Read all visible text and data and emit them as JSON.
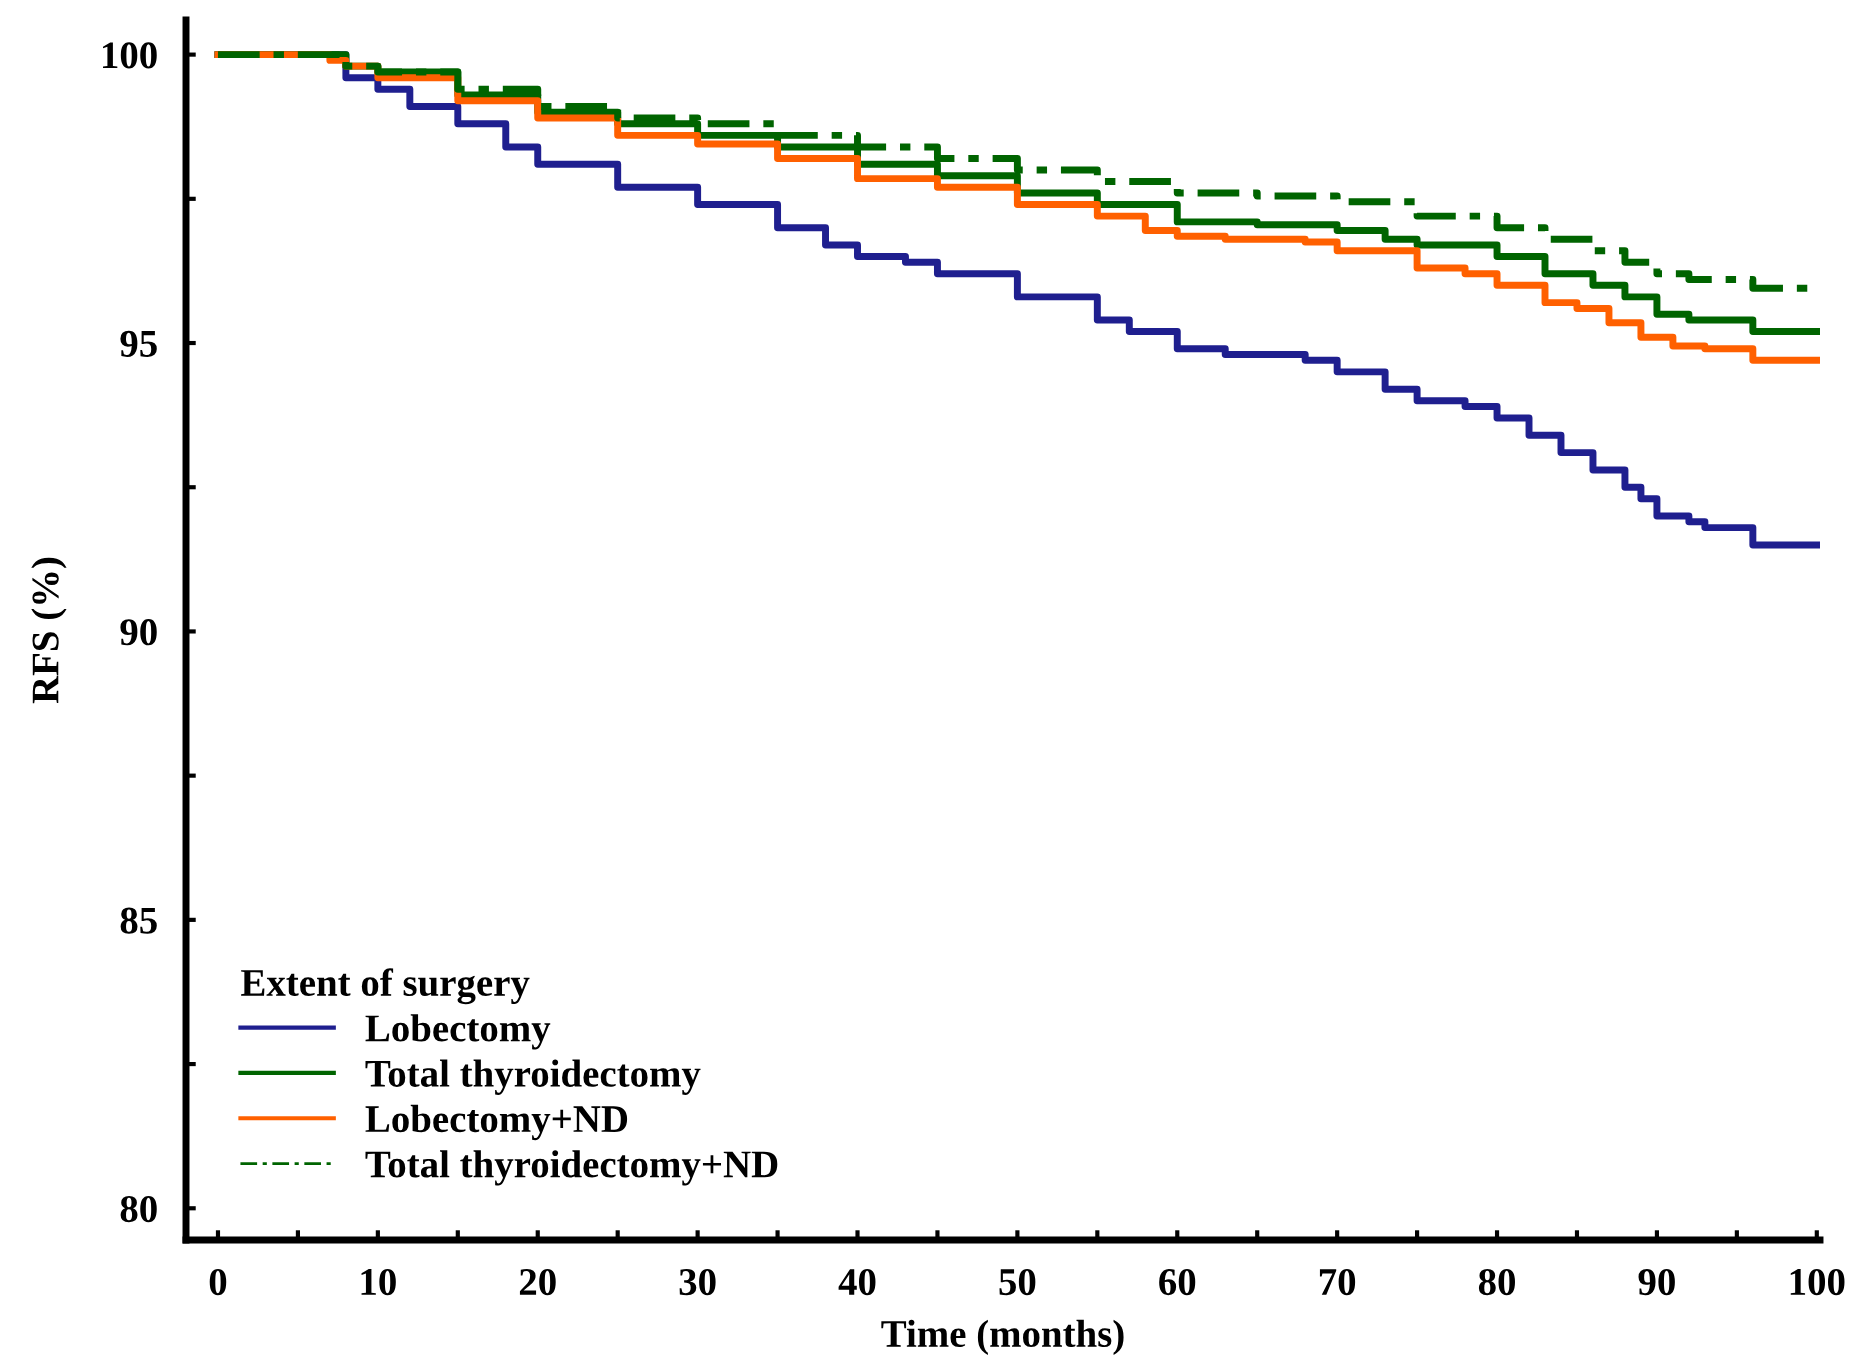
{
  "chart_data": {
    "type": "step",
    "xlabel": "Time (months)",
    "ylabel": "RFS (%)",
    "legend_title": "Extent of surgery",
    "legend": "bottom left",
    "grid": false,
    "xlim": [
      -2,
      100.2
    ],
    "ylim": [
      79.45,
      100.6
    ],
    "xticks": [
      0,
      {
        "value": 5,
        "label": null
      },
      10,
      {
        "value": 15,
        "label": null
      },
      20,
      {
        "value": 25,
        "label": null
      },
      30,
      {
        "value": 35,
        "label": null
      },
      40,
      {
        "value": 45,
        "label": null
      },
      50,
      {
        "value": 55,
        "label": null
      },
      60,
      {
        "value": 65,
        "label": null
      },
      70,
      {
        "value": 75,
        "label": null
      },
      80,
      {
        "value": 85,
        "label": null
      },
      90,
      {
        "value": 95,
        "label": null
      },
      100
    ],
    "yticks": [
      80,
      {
        "value": 82.5,
        "label": null
      },
      85,
      {
        "value": 87.5,
        "label": null
      },
      90,
      {
        "value": 92.5,
        "label": null
      },
      95,
      {
        "value": 97.5,
        "label": null
      },
      100
    ],
    "series": [
      {
        "name": "Lobectomy",
        "color": "#1f1f8f",
        "line_style": "solid",
        "x": [
          0,
          8,
          10,
          12,
          15,
          18,
          20,
          25,
          30,
          35,
          38,
          40,
          43,
          45,
          50,
          55,
          57,
          60,
          63,
          68,
          70,
          73,
          75,
          78,
          80,
          82,
          84,
          86,
          88,
          89,
          90,
          92,
          93,
          96,
          100
        ],
        "values": [
          100,
          99.6,
          99.4,
          99.1,
          98.8,
          98.4,
          98.1,
          97.7,
          97.4,
          97.0,
          96.7,
          96.5,
          96.4,
          96.2,
          95.8,
          95.4,
          95.2,
          94.9,
          94.8,
          94.7,
          94.5,
          94.2,
          94.0,
          93.9,
          93.7,
          93.4,
          93.1,
          92.8,
          92.5,
          92.3,
          92.0,
          91.9,
          91.8,
          91.5,
          91.5
        ]
      },
      {
        "name": "Total thyroidectomy",
        "color": "#006400",
        "line_style": "solid",
        "x": [
          0,
          8,
          10,
          15,
          20,
          25,
          30,
          35,
          40,
          45,
          50,
          55,
          60,
          65,
          70,
          73,
          75,
          80,
          83,
          86,
          88,
          90,
          92,
          96,
          100
        ],
        "values": [
          100,
          99.8,
          99.7,
          99.3,
          99.0,
          98.8,
          98.6,
          98.4,
          98.1,
          97.9,
          97.6,
          97.4,
          97.1,
          97.05,
          96.95,
          96.8,
          96.7,
          96.5,
          96.2,
          96.0,
          95.8,
          95.5,
          95.4,
          95.2,
          95.2
        ]
      },
      {
        "name": "Lobectomy+ND",
        "color": "#ff6000",
        "line_style": "solid",
        "x": [
          0,
          7,
          8,
          10,
          15,
          20,
          25,
          30,
          35,
          40,
          45,
          50,
          55,
          58,
          60,
          63,
          68,
          70,
          75,
          78,
          80,
          83,
          85,
          87,
          89,
          91,
          93,
          96,
          100
        ],
        "values": [
          100,
          99.9,
          99.8,
          99.6,
          99.2,
          98.9,
          98.6,
          98.45,
          98.2,
          97.85,
          97.7,
          97.4,
          97.2,
          96.95,
          96.85,
          96.8,
          96.75,
          96.6,
          96.3,
          96.2,
          96.0,
          95.7,
          95.6,
          95.35,
          95.1,
          94.95,
          94.9,
          94.7,
          94.7
        ]
      },
      {
        "name": "Total thyroidectomy+ND",
        "color": "#006400",
        "line_style": "dashdot",
        "x": [
          0,
          8,
          10,
          15,
          20,
          25,
          30,
          35,
          40,
          45,
          50,
          55,
          60,
          65,
          70,
          75,
          80,
          83,
          86,
          88,
          90,
          92,
          96,
          100
        ],
        "values": [
          100,
          99.8,
          99.7,
          99.4,
          99.1,
          98.9,
          98.8,
          98.6,
          98.4,
          98.2,
          98.0,
          97.8,
          97.6,
          97.55,
          97.45,
          97.2,
          97.0,
          96.8,
          96.6,
          96.4,
          96.2,
          96.1,
          95.95,
          95.95
        ]
      }
    ]
  }
}
